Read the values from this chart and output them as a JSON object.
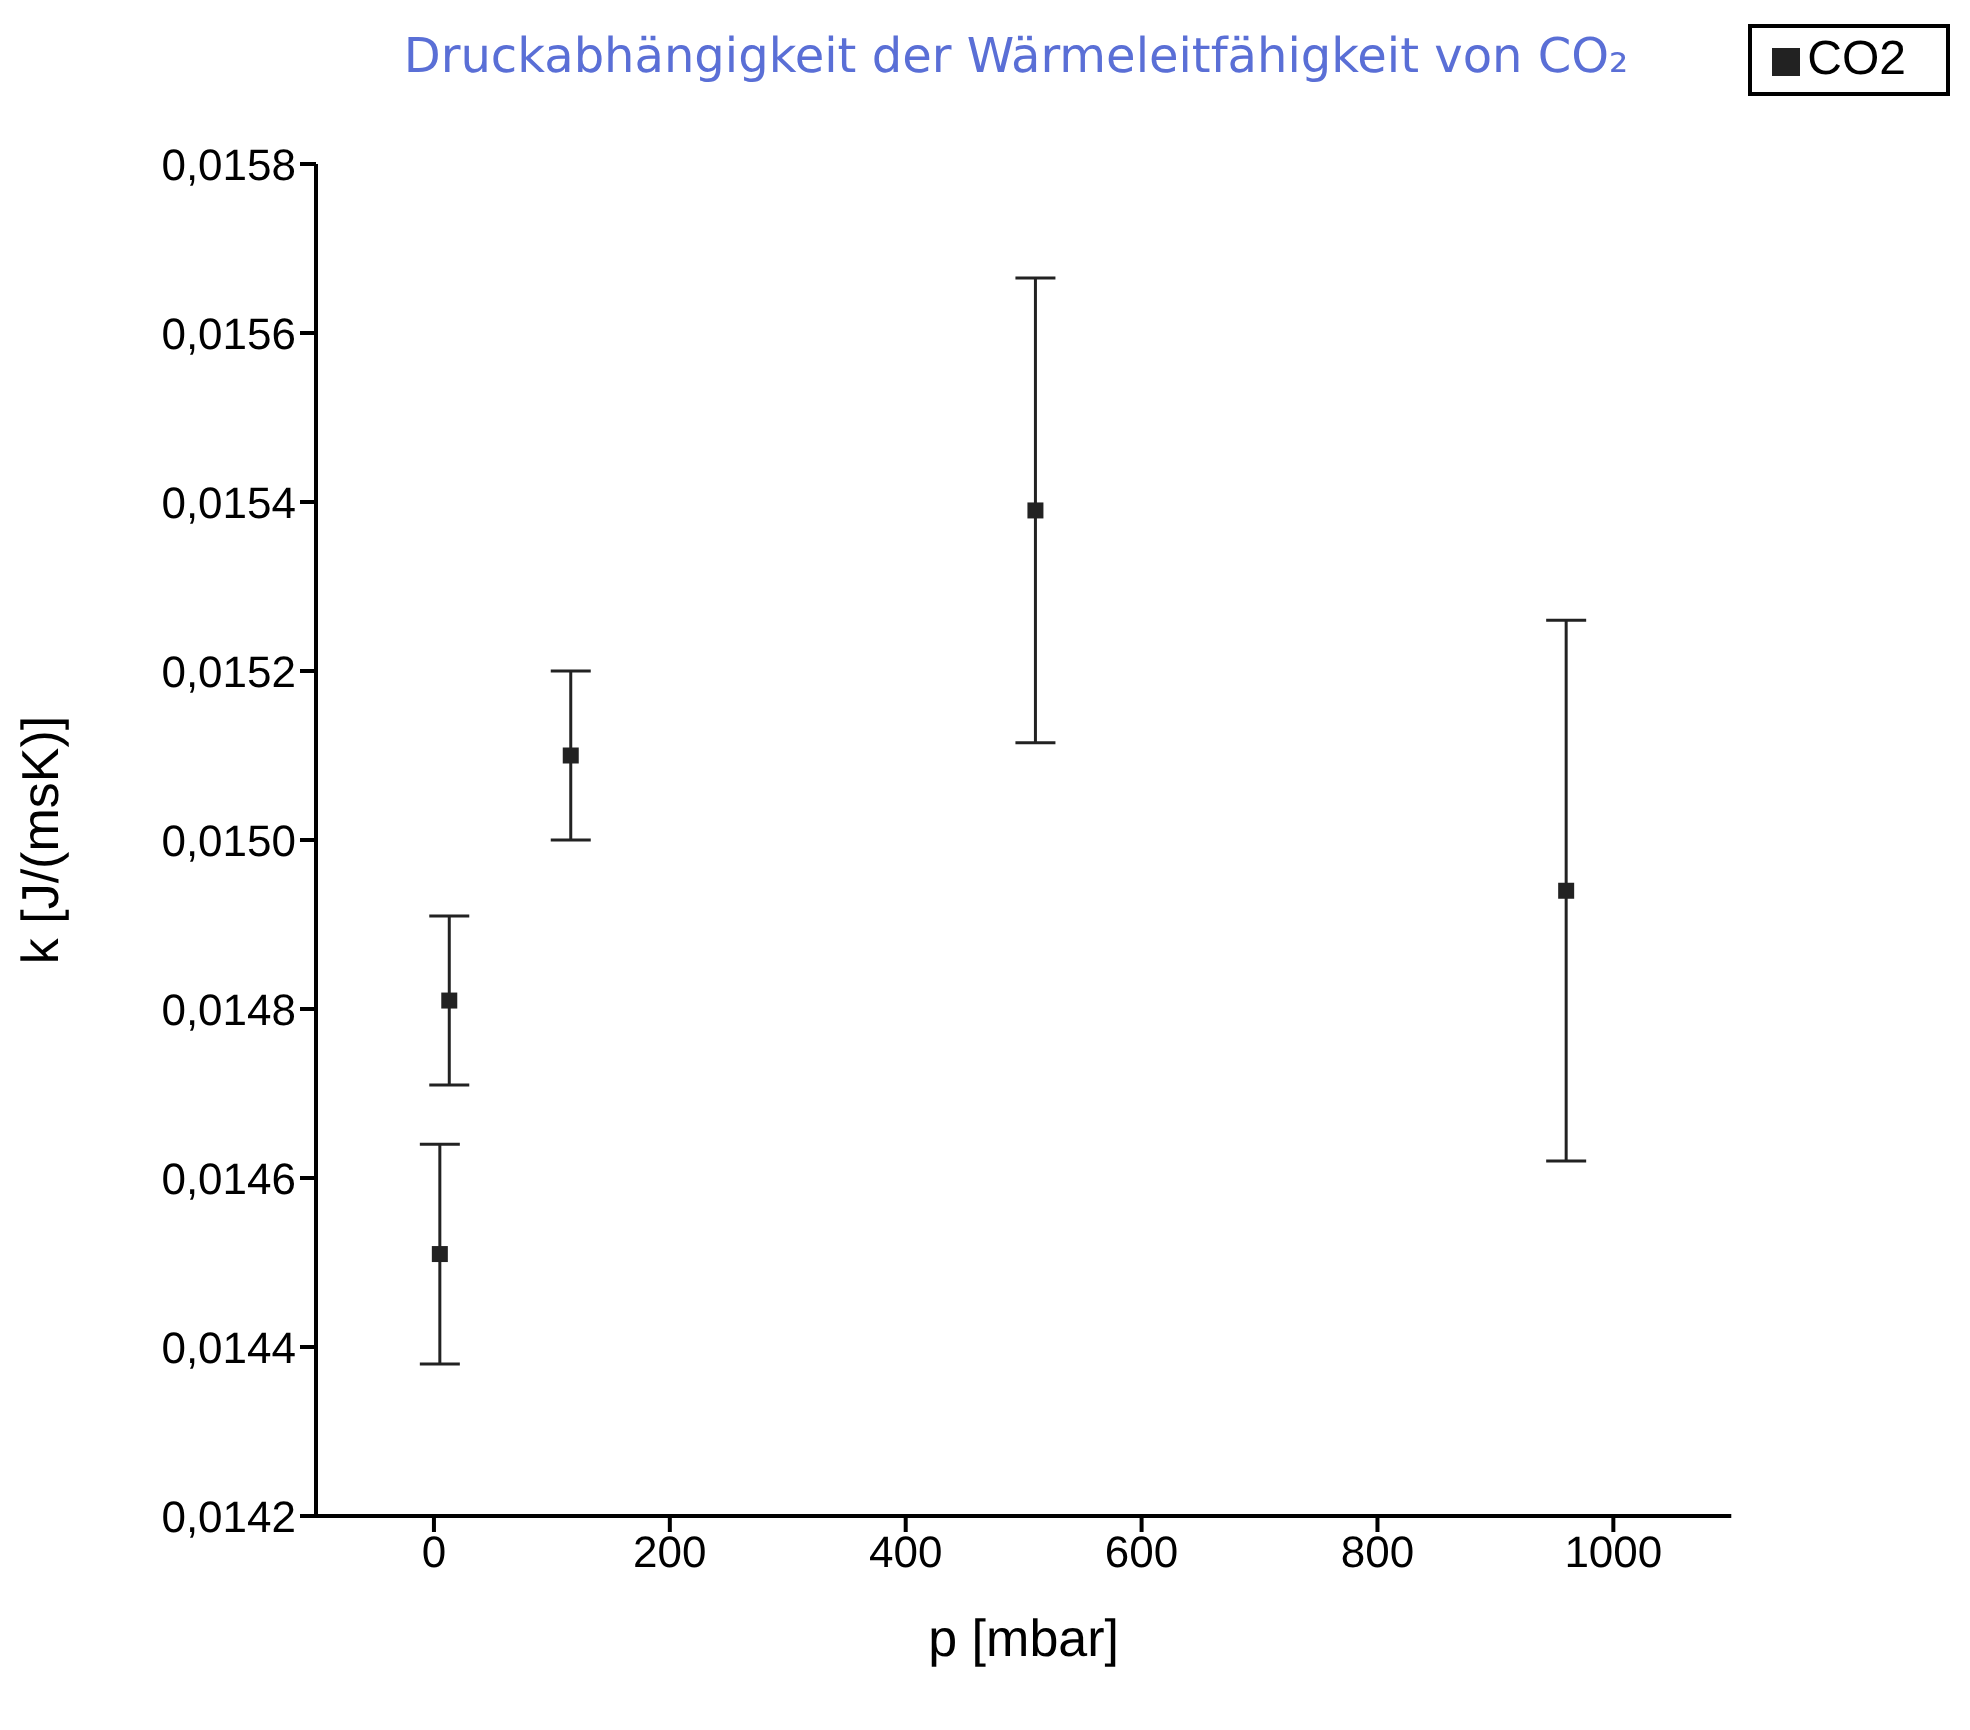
{
  "chart_data": {
    "type": "scatter",
    "title": "Druckabhängigkeit der Wärmeleitfähigkeit von CO₂",
    "xlabel": "p [mbar]",
    "ylabel": "k [J/(msK)]",
    "x": [
      5,
      13,
      116,
      510,
      960
    ],
    "series": [
      {
        "name": "CO2",
        "color": "#222222",
        "values": [
          0.01451,
          0.01481,
          0.0151,
          0.01539,
          0.01494
        ],
        "errors": [
          0.00013,
          0.0001,
          0.0001,
          0.000275,
          0.00032
        ]
      }
    ],
    "xlim": [
      -100,
      1100
    ],
    "xticks": [
      0,
      200,
      400,
      600,
      800,
      1000
    ],
    "ylim": [
      0.0142,
      0.0158
    ],
    "yticks": [
      {
        "value": 0.0142,
        "label": "0,0142"
      },
      {
        "value": 0.0144,
        "label": "0,0144"
      },
      {
        "value": 0.0146,
        "label": "0,0146"
      },
      {
        "value": 0.0148,
        "label": "0,0148"
      },
      {
        "value": 0.015,
        "label": "0,0150"
      },
      {
        "value": 0.0152,
        "label": "0,0152"
      },
      {
        "value": 0.0154,
        "label": "0,0154"
      },
      {
        "value": 0.0156,
        "label": "0,0156"
      },
      {
        "value": 0.0158,
        "label": "0,0158"
      }
    ],
    "marker": "square",
    "grid": false,
    "legend": "top right"
  }
}
